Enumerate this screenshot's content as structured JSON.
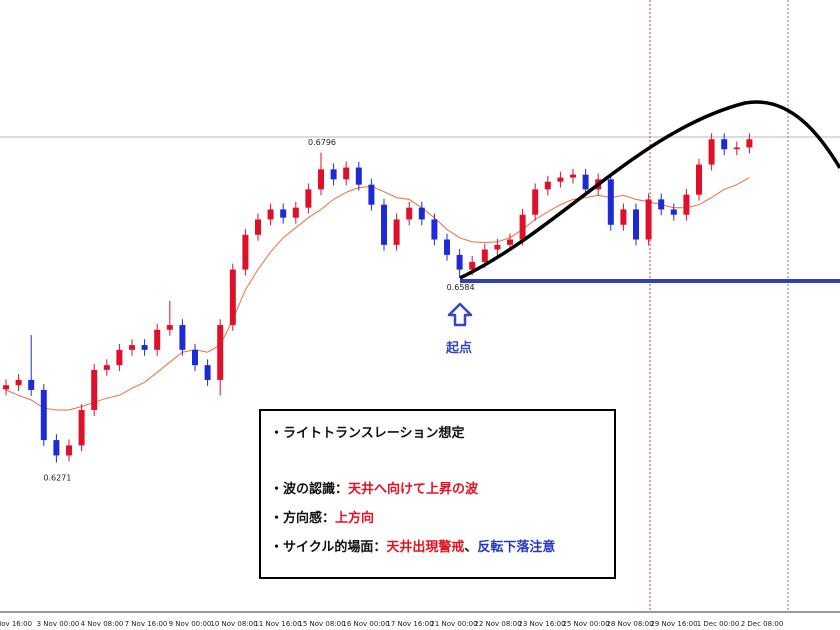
{
  "chart_data": {
    "type": "candlestick",
    "ylim": [
      0.6021,
      0.7055
    ],
    "up_color": "#e0102a",
    "down_color": "#1c2bd6",
    "ma_color": "#f26b3a",
    "opens": [
      0.6395,
      0.6402,
      0.6411,
      0.6394,
      0.6309,
      0.6283,
      0.63,
      0.636,
      0.6428,
      0.6436,
      0.6462,
      0.647,
      0.6462,
      0.6496,
      0.6504,
      0.6462,
      0.6436,
      0.6411,
      0.6504,
      0.6598,
      0.6657,
      0.6683,
      0.67,
      0.6686,
      0.6703,
      0.6734,
      0.6768,
      0.6751,
      0.6771,
      0.6742,
      0.6708,
      0.664,
      0.6683,
      0.6703,
      0.6683,
      0.6649,
      0.6623,
      0.6598,
      0.6611,
      0.6632,
      0.664,
      0.6649,
      0.6691,
      0.6734,
      0.6747,
      0.6754,
      0.6759,
      0.6734,
      0.6751,
      0.6674,
      0.67,
      0.6649,
      0.6717,
      0.67,
      0.6691,
      0.6725,
      0.6776,
      0.6819,
      0.6802,
      0.6805
    ],
    "highs": [
      0.6412,
      0.6421,
      0.6487,
      0.6404,
      0.6319,
      0.631,
      0.637,
      0.6438,
      0.6446,
      0.6472,
      0.648,
      0.648,
      0.6506,
      0.6545,
      0.6514,
      0.6472,
      0.6446,
      0.6514,
      0.6608,
      0.6667,
      0.6693,
      0.671,
      0.671,
      0.6713,
      0.6744,
      0.6796,
      0.6778,
      0.6781,
      0.6781,
      0.6752,
      0.6718,
      0.6693,
      0.6713,
      0.6713,
      0.6693,
      0.6659,
      0.6633,
      0.6621,
      0.6642,
      0.665,
      0.6659,
      0.6701,
      0.6744,
      0.6757,
      0.6764,
      0.6769,
      0.6769,
      0.6761,
      0.6761,
      0.671,
      0.671,
      0.6727,
      0.6727,
      0.671,
      0.6735,
      0.6786,
      0.6829,
      0.6829,
      0.6815,
      0.6829
    ],
    "lows": [
      0.6385,
      0.6392,
      0.6384,
      0.6299,
      0.6271,
      0.6273,
      0.629,
      0.635,
      0.6418,
      0.6426,
      0.6452,
      0.6452,
      0.6452,
      0.6486,
      0.6452,
      0.6426,
      0.6401,
      0.6385,
      0.6494,
      0.6588,
      0.6647,
      0.6673,
      0.6676,
      0.6676,
      0.6693,
      0.6724,
      0.6741,
      0.6741,
      0.6732,
      0.6698,
      0.663,
      0.663,
      0.6673,
      0.6673,
      0.6639,
      0.6613,
      0.6584,
      0.6588,
      0.6601,
      0.6622,
      0.663,
      0.6639,
      0.6681,
      0.6724,
      0.6737,
      0.6744,
      0.6724,
      0.6724,
      0.6664,
      0.6664,
      0.6639,
      0.6639,
      0.669,
      0.6681,
      0.6681,
      0.6715,
      0.6766,
      0.6792,
      0.6792,
      0.6795
    ],
    "closes": [
      0.6402,
      0.6411,
      0.6394,
      0.6309,
      0.6283,
      0.63,
      0.636,
      0.6428,
      0.6436,
      0.6462,
      0.647,
      0.6462,
      0.6496,
      0.6504,
      0.6462,
      0.6436,
      0.6411,
      0.6504,
      0.6598,
      0.6657,
      0.6683,
      0.67,
      0.6686,
      0.6703,
      0.6734,
      0.6768,
      0.6751,
      0.6771,
      0.6742,
      0.6708,
      0.664,
      0.6683,
      0.6703,
      0.6683,
      0.6649,
      0.6623,
      0.6598,
      0.6611,
      0.6632,
      0.664,
      0.6649,
      0.6691,
      0.6734,
      0.6747,
      0.6754,
      0.6759,
      0.6734,
      0.6751,
      0.6674,
      0.67,
      0.6649,
      0.6717,
      0.67,
      0.6691,
      0.6725,
      0.6776,
      0.6819,
      0.6802,
      0.6805,
      0.6819
    ],
    "ma": [
      0.6394,
      0.6385,
      0.6377,
      0.6363,
      0.636,
      0.636,
      0.6366,
      0.6373,
      0.638,
      0.6385,
      0.6397,
      0.6407,
      0.6424,
      0.6441,
      0.6458,
      0.6462,
      0.6458,
      0.647,
      0.6513,
      0.6564,
      0.6598,
      0.6628,
      0.6652,
      0.6669,
      0.6686,
      0.67,
      0.6717,
      0.6729,
      0.6737,
      0.6739,
      0.673,
      0.672,
      0.6717,
      0.6703,
      0.6686,
      0.6666,
      0.6652,
      0.6645,
      0.6644,
      0.6645,
      0.6652,
      0.6666,
      0.6683,
      0.6696,
      0.6708,
      0.6717,
      0.672,
      0.6724,
      0.672,
      0.6724,
      0.6717,
      0.6713,
      0.6708,
      0.6703,
      0.6703,
      0.6708,
      0.672,
      0.6734,
      0.6742,
      0.6754
    ],
    "x_labels": [
      "Nov 16:00",
      "3 Nov 00:00",
      "4 Nov 08:00",
      "7 Nov 16:00",
      "9 Nov 00:00",
      "10 Nov 08:00",
      "11 Nov 16:00",
      "15 Nov 08:00",
      "16 Nov 00:00",
      "17 Nov 16:00",
      "21 Nov 00:00",
      "22 Nov 08:00",
      "23 Nov 16:00",
      "25 Nov 00:00",
      "28 Nov 08:00",
      "29 Nov 16:00",
      "1 Dec 00:00",
      "2 Dec 08:00"
    ],
    "start_label": "起点"
  },
  "annotation": {
    "lines": [
      [
        {
          "text": "・ライトトランスレーション想定",
          "color": "#111"
        }
      ],
      [
        {
          "text": "・波の認識：",
          "color": "#111"
        },
        {
          "text": "天井へ向けて上昇の波",
          "color": "#e8101e"
        }
      ],
      [
        {
          "text": "・方向感：",
          "color": "#111"
        },
        {
          "text": "上方向",
          "color": "#e8101e"
        }
      ],
      [
        {
          "text": "・サイクル的場面：",
          "color": "#111"
        },
        {
          "text": "天井出現警戒",
          "color": "#e8101e"
        },
        {
          "text": "、",
          "color": "#111"
        },
        {
          "text": "反転下落注意",
          "color": "#2535c8"
        }
      ]
    ]
  }
}
